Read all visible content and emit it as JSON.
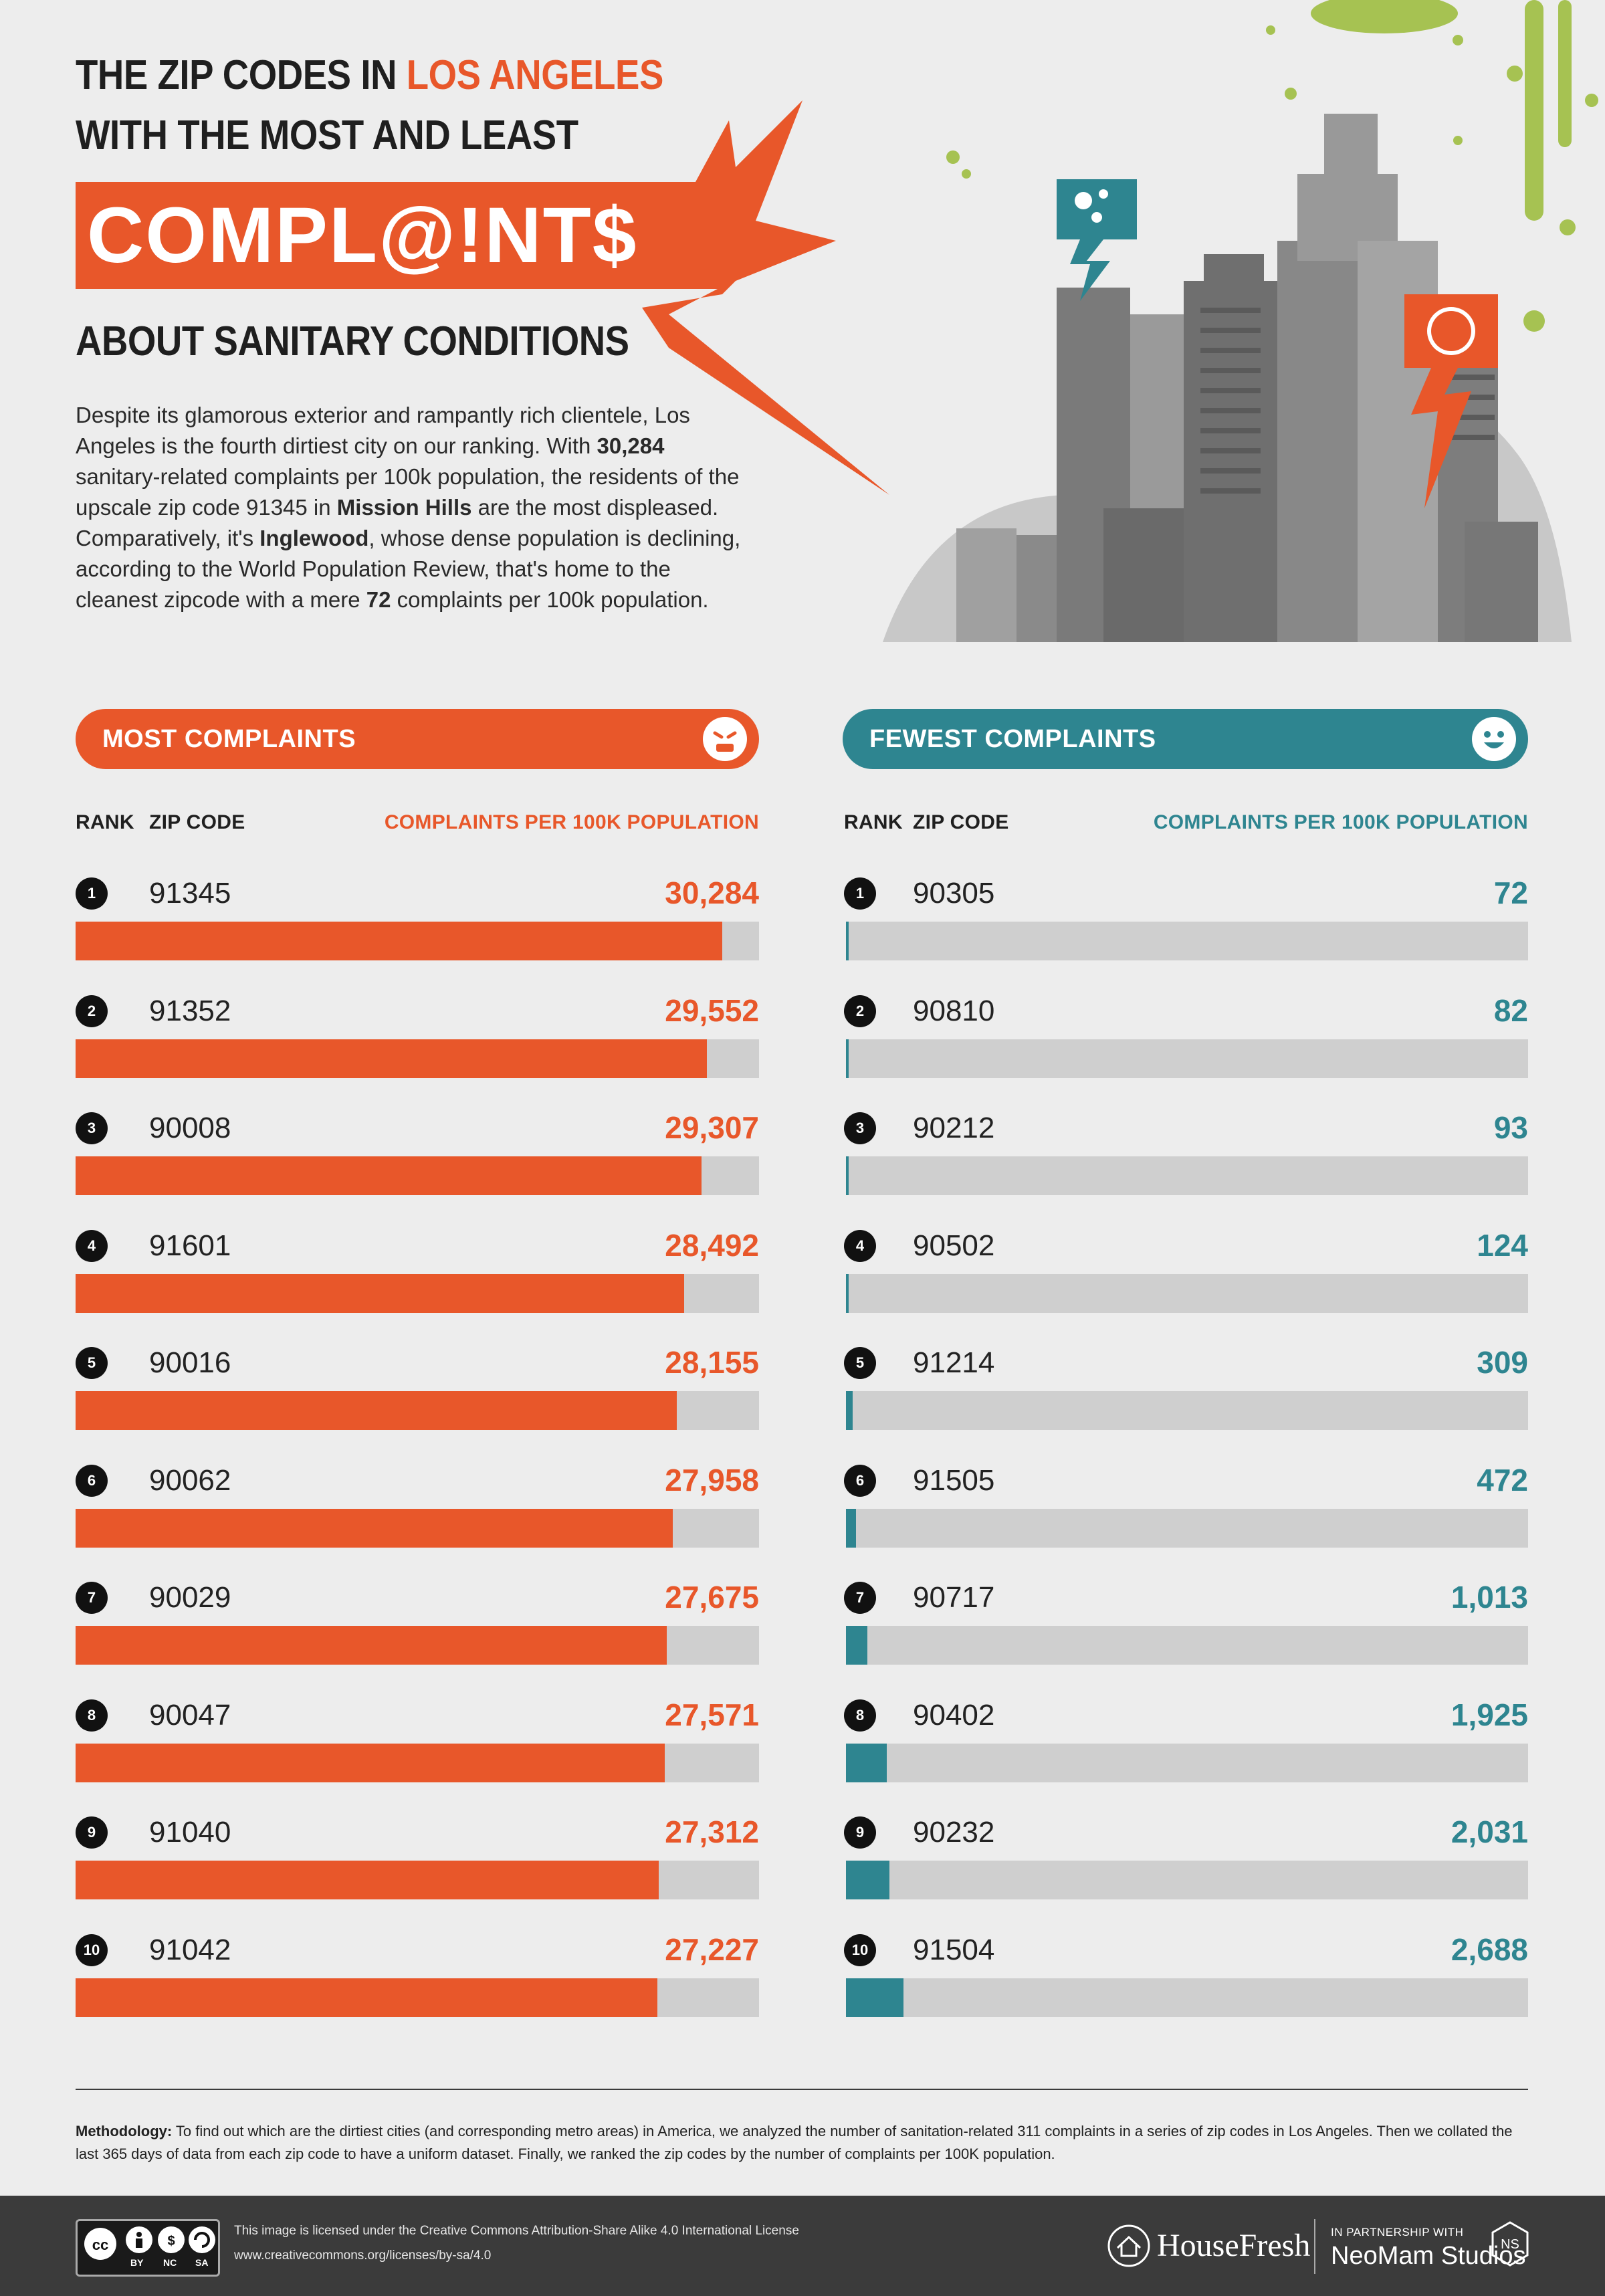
{
  "title": {
    "line1_pre": "THE ZIP CODES IN ",
    "line1_accent": "LOS ANGELES",
    "line2": "WITH THE MOST AND LEAST",
    "big_word": "COMPL@!NT$",
    "line3": "ABOUT SANITARY CONDITIONS"
  },
  "intro": {
    "p1": "Despite its glamorous exterior and rampantly rich clientele, Los Angeles is the fourth dirtiest city on our ranking. With ",
    "b1": "30,284",
    "p2": " sanitary-related complaints per 100k population, the residents of the upscale zip code 91345 in ",
    "b2": "Mission Hills",
    "p3": " are the most displeased. Comparatively, it's ",
    "b3": "Inglewood",
    "p4": ", whose dense population is declining, according to the World Population Review, that's home to the cleanest zipcode with a mere ",
    "b4": "72",
    "p5": " complaints per 100k population."
  },
  "colors": {
    "most": "#e8572a",
    "fewest": "#2e8590",
    "track": "#cfcfcf",
    "dark": "#111111"
  },
  "most": {
    "header": "MOST COMPLAINTS",
    "col_rank": "RANK",
    "col_zip": "ZIP CODE",
    "col_value": "COMPLAINTS PER 100K POPULATION"
  },
  "fewest": {
    "header": "FEWEST COMPLAINTS",
    "col_rank": "RANK",
    "col_zip": "ZIP CODE",
    "col_value": "COMPLAINTS PER 100K POPULATION"
  },
  "chart_data": [
    {
      "type": "bar",
      "title": "MOST COMPLAINTS",
      "xlabel": "ZIP CODE",
      "ylabel": "COMPLAINTS PER 100K POPULATION",
      "ranks": [
        "1",
        "2",
        "3",
        "4",
        "5",
        "6",
        "7",
        "8",
        "9",
        "10"
      ],
      "categories": [
        "91345",
        "91352",
        "90008",
        "91601",
        "90016",
        "90062",
        "90029",
        "90047",
        "91040",
        "91042"
      ],
      "values": [
        30284,
        29552,
        29307,
        28492,
        28155,
        27958,
        27675,
        27571,
        27312,
        27227
      ],
      "labels": [
        "30,284",
        "29,552",
        "29,307",
        "28,492",
        "28,155",
        "27,958",
        "27,675",
        "27,571",
        "27,312",
        "27,227"
      ],
      "ylim": [
        0,
        32000
      ]
    },
    {
      "type": "bar",
      "title": "FEWEST COMPLAINTS",
      "xlabel": "ZIP CODE",
      "ylabel": "COMPLAINTS PER 100K POPULATION",
      "ranks": [
        "1",
        "2",
        "3",
        "4",
        "5",
        "6",
        "7",
        "8",
        "9",
        "10"
      ],
      "categories": [
        "90305",
        "90810",
        "90212",
        "90502",
        "91214",
        "91505",
        "90717",
        "90402",
        "90232",
        "91504"
      ],
      "values": [
        72,
        82,
        93,
        124,
        309,
        472,
        1013,
        1925,
        2031,
        2688
      ],
      "labels": [
        "72",
        "82",
        "93",
        "124",
        "309",
        "472",
        "1,013",
        "1,925",
        "2,031",
        "2,688"
      ],
      "ylim": [
        0,
        32000
      ]
    }
  ],
  "methodology": {
    "label": "Methodology:",
    "text": " To find out which are the dirtiest cities (and corresponding metro areas) in America, we analyzed the number of sanitation-related 311 complaints in a series of zip codes in Los Angeles. Then we collated the last 365 days of data from each zip code to have a uniform dataset. Finally, we ranked the zip codes by the number of complaints per 100K population."
  },
  "footer": {
    "license_line1": "This image is licensed under the Creative Commons Attribution-Share Alike 4.0  International License",
    "license_line2": "www.creativecommons.org/licenses/by-sa/4.0",
    "cc_by": "BY",
    "cc_nc": "NC",
    "cc_sa": "SA",
    "brand": "HouseFresh",
    "partner_label": "IN PARTNERSHIP WITH",
    "partner_name": "NeoMam Studios"
  }
}
